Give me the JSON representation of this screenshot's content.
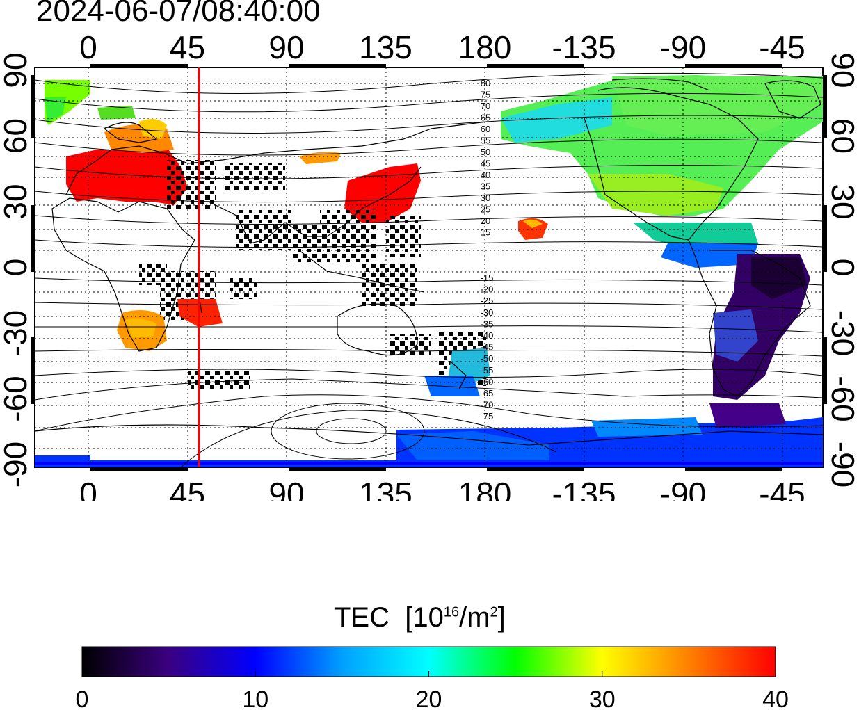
{
  "timestamp": "2024-06-07/08:40:00",
  "map": {
    "x_ticks": [
      "0",
      "45",
      "90",
      "135",
      "180",
      "-135",
      "-90",
      "-45"
    ],
    "y_ticks": [
      "90",
      "60",
      "30",
      "0",
      "-30",
      "-60",
      "-90"
    ],
    "marker_longitude": 50,
    "marker_color": "#ff0000",
    "grid": "dotted",
    "contour_labels_north": [
      "80",
      "75",
      "70",
      "65",
      "60",
      "55",
      "50",
      "45",
      "40",
      "35",
      "30",
      "25",
      "20",
      "15"
    ],
    "contour_labels_south": [
      "-15",
      "-20",
      "-25",
      "-30",
      "-35",
      "-40",
      "-45",
      "-50",
      "-55",
      "-60",
      "-65",
      "-70",
      "-75"
    ]
  },
  "colorbar": {
    "title_base": "TEC",
    "title_unit_open": "[10",
    "title_exp1": "16",
    "title_mid": "/m",
    "title_exp2": "2",
    "title_close": "]",
    "ticks": [
      "0",
      "10",
      "20",
      "30",
      "40"
    ],
    "range": [
      0,
      40
    ],
    "colormap": [
      "#000000",
      "#3a0080",
      "#0000ff",
      "#00a0ff",
      "#00ffff",
      "#00ff00",
      "#ffff00",
      "#ff8000",
      "#ff0000"
    ]
  }
}
